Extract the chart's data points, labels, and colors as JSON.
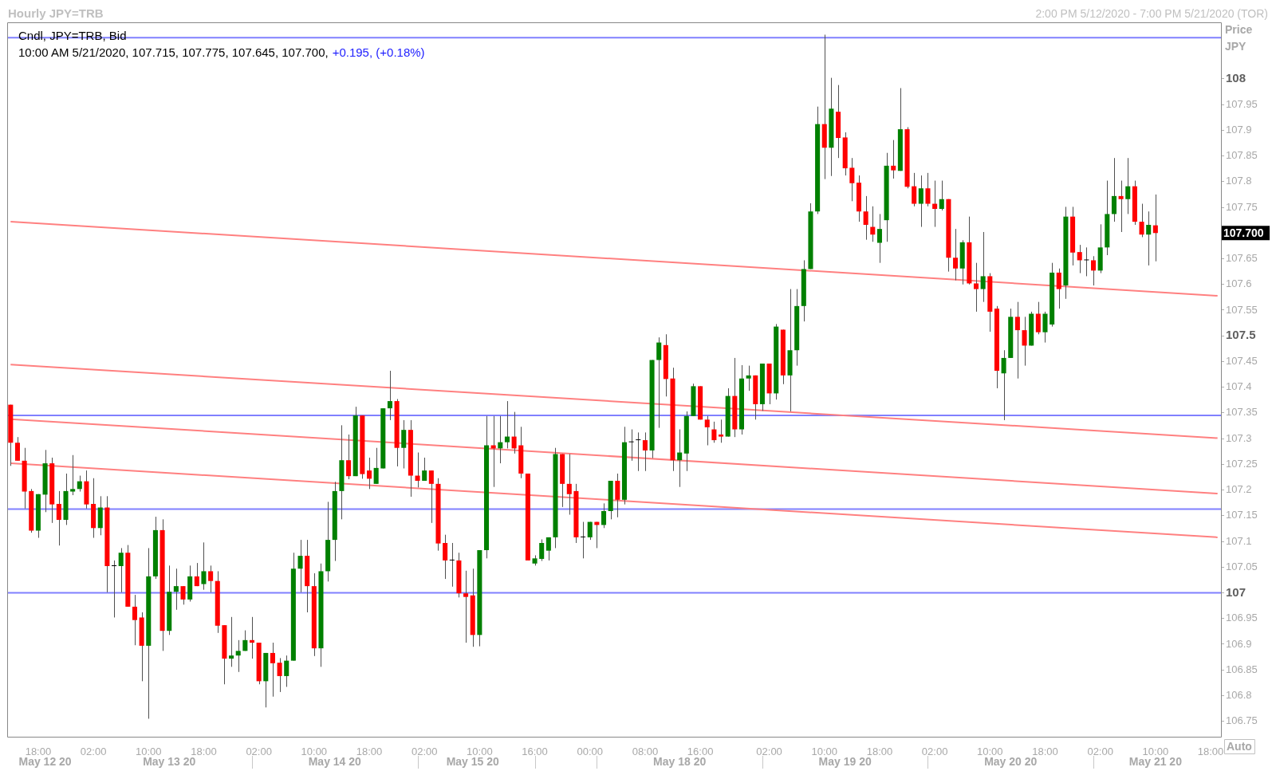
{
  "chart_data": {
    "type": "candlestick",
    "title": "Hourly JPY=TRB",
    "subtitle": "2:00 PM 5/12/2020 - 7:00 PM 5/21/2020 (TOR)",
    "ylabel": "Price JPY",
    "annotations": [
      "Cndl, JPY=TRB, Bid",
      "10:00 AM 5/21/2020, 107.715, 107.775, 107.645, 107.700,",
      "+0.195, (+0.18%)",
      "Auto",
      "May 12 20",
      "May 13 20",
      "May 14 20",
      "May 15 20",
      "May 18 20",
      "May 19 20",
      "May 20 20",
      "May 21 20"
    ],
    "categories": [
      null,
      null,
      null,
      null,
      "18:00",
      null,
      null,
      null,
      null,
      null,
      null,
      null,
      "02:00",
      null,
      null,
      null,
      null,
      null,
      null,
      null,
      "10:00",
      null,
      null,
      null,
      null,
      null,
      null,
      null,
      "18:00",
      null,
      null,
      null,
      null,
      null,
      null,
      null,
      "02:00",
      null,
      null,
      null,
      null,
      null,
      null,
      null,
      "10:00",
      null,
      null,
      null,
      null,
      null,
      null,
      null,
      "18:00",
      null,
      null,
      null,
      null,
      null,
      null,
      null,
      "02:00",
      null,
      null,
      null,
      null,
      null,
      null,
      null,
      "10:00",
      null,
      null,
      null,
      null,
      null,
      null,
      null,
      "16:00",
      null,
      null,
      null,
      null,
      null,
      null,
      null,
      "00:00",
      null,
      null,
      null,
      null,
      null,
      null,
      null,
      "08:00",
      null,
      null,
      null,
      null,
      null,
      null,
      null,
      "16:00",
      null,
      null,
      null,
      null,
      null,
      null,
      null,
      null,
      null,
      "02:00",
      null,
      null,
      null,
      null,
      null,
      null,
      null,
      "10:00",
      null,
      null,
      null,
      null,
      null,
      null,
      null,
      "18:00",
      null,
      null,
      null,
      null,
      null,
      null,
      null,
      "02:00",
      null,
      null,
      null,
      null,
      null,
      null,
      null,
      "10:00",
      null,
      null,
      null,
      null,
      null,
      null,
      null,
      "18:00",
      null,
      null,
      null,
      null,
      null,
      null,
      null,
      "02:00",
      null,
      null,
      null,
      null,
      null,
      null,
      null,
      "10:00",
      null,
      null,
      null,
      null,
      null,
      null,
      null,
      "18:00",
      null
    ],
    "ohlc": [
      [
        107.366,
        107.366,
        107.247,
        107.292
      ],
      [
        107.292,
        107.303,
        107.257,
        107.257
      ],
      [
        107.257,
        107.282,
        107.164,
        107.197
      ],
      [
        107.198,
        107.202,
        107.117,
        107.121
      ],
      [
        107.121,
        107.192,
        107.107,
        107.192
      ],
      [
        107.191,
        107.278,
        107.157,
        107.252
      ],
      [
        107.252,
        107.263,
        107.136,
        107.172
      ],
      [
        107.173,
        107.198,
        107.092,
        107.142
      ],
      [
        107.142,
        107.232,
        107.132,
        107.198
      ],
      [
        107.197,
        107.268,
        107.19,
        107.202
      ],
      [
        107.202,
        107.228,
        107.197,
        107.217
      ],
      [
        107.217,
        107.238,
        107.164,
        107.172
      ],
      [
        107.173,
        107.223,
        107.107,
        107.126
      ],
      [
        107.126,
        107.188,
        107.112,
        107.166
      ],
      [
        107.166,
        107.188,
        107.001,
        107.052
      ],
      [
        107.052,
        107.063,
        106.952,
        107.052
      ],
      [
        107.052,
        107.087,
        107.001,
        107.078
      ],
      [
        107.078,
        107.093,
        106.973,
        106.973
      ],
      [
        106.973,
        106.996,
        106.898,
        106.947
      ],
      [
        106.952,
        106.962,
        106.828,
        106.897
      ],
      [
        106.897,
        107.087,
        106.755,
        107.032
      ],
      [
        107.032,
        107.148,
        107.027,
        107.122
      ],
      [
        107.122,
        107.143,
        106.887,
        106.926
      ],
      [
        106.926,
        107.053,
        106.918,
        107.002
      ],
      [
        107.002,
        107.047,
        106.967,
        107.013
      ],
      [
        107.013,
        107.013,
        106.977,
        106.987
      ],
      [
        106.987,
        107.053,
        106.983,
        107.032
      ],
      [
        107.032,
        107.058,
        107.013,
        107.013
      ],
      [
        107.017,
        107.098,
        107.006,
        107.042
      ],
      [
        107.042,
        107.053,
        107.001,
        107.023
      ],
      [
        107.023,
        107.042,
        106.922,
        106.936
      ],
      [
        106.937,
        106.937,
        106.822,
        106.872
      ],
      [
        106.872,
        106.953,
        106.856,
        106.878
      ],
      [
        106.878,
        106.908,
        106.846,
        106.887
      ],
      [
        106.887,
        106.927,
        106.887,
        106.908
      ],
      [
        106.908,
        106.953,
        106.872,
        106.903
      ],
      [
        106.903,
        106.903,
        106.822,
        106.828
      ],
      [
        106.828,
        106.883,
        106.777,
        106.883
      ],
      [
        106.883,
        106.903,
        106.798,
        106.863
      ],
      [
        106.864,
        106.873,
        106.807,
        106.838
      ],
      [
        106.838,
        106.878,
        106.817,
        106.868
      ],
      [
        106.868,
        107.078,
        106.868,
        107.047
      ],
      [
        107.047,
        107.103,
        107.001,
        107.072
      ],
      [
        107.072,
        107.103,
        106.962,
        107.013
      ],
      [
        107.013,
        107.038,
        106.877,
        106.892
      ],
      [
        106.892,
        107.057,
        106.856,
        107.042
      ],
      [
        107.042,
        107.177,
        107.022,
        107.103
      ],
      [
        107.103,
        107.216,
        107.062,
        107.198
      ],
      [
        107.198,
        107.326,
        107.143,
        107.258
      ],
      [
        107.258,
        107.308,
        107.221,
        107.227
      ],
      [
        107.227,
        107.362,
        107.227,
        107.345
      ],
      [
        107.345,
        107.345,
        107.222,
        107.231
      ],
      [
        107.238,
        107.263,
        107.202,
        107.222
      ],
      [
        107.212,
        107.282,
        107.212,
        107.243
      ],
      [
        107.242,
        107.359,
        107.242,
        107.359
      ],
      [
        107.359,
        107.432,
        107.336,
        107.373
      ],
      [
        107.373,
        107.377,
        107.246,
        107.282
      ],
      [
        107.282,
        107.336,
        107.242,
        107.317
      ],
      [
        107.317,
        107.336,
        107.187,
        107.228
      ],
      [
        107.228,
        107.273,
        107.205,
        107.218
      ],
      [
        107.218,
        107.263,
        107.218,
        107.238
      ],
      [
        107.238,
        107.238,
        107.136,
        107.212
      ],
      [
        107.212,
        107.223,
        107.082,
        107.096
      ],
      [
        107.097,
        107.113,
        107.027,
        107.063
      ],
      [
        107.063,
        107.097,
        107.012,
        107.063
      ],
      [
        107.063,
        107.078,
        106.991,
        106.999
      ],
      [
        106.999,
        107.043,
        106.903,
        106.992
      ],
      [
        106.995,
        107.047,
        106.895,
        106.918
      ],
      [
        106.918,
        107.083,
        106.896,
        107.083
      ],
      [
        107.083,
        107.344,
        107.067,
        107.287
      ],
      [
        107.287,
        107.344,
        107.206,
        107.281
      ],
      [
        107.281,
        107.344,
        107.252,
        107.293
      ],
      [
        107.293,
        107.373,
        107.281,
        107.304
      ],
      [
        107.304,
        107.352,
        107.271,
        107.281
      ],
      [
        107.287,
        107.323,
        107.223,
        107.232
      ],
      [
        107.232,
        107.232,
        107.063,
        107.063
      ],
      [
        107.057,
        107.073,
        107.053,
        107.067
      ],
      [
        107.066,
        107.104,
        107.062,
        107.097
      ],
      [
        107.082,
        107.108,
        107.063,
        107.108
      ],
      [
        107.108,
        107.282,
        107.087,
        107.27
      ],
      [
        107.27,
        107.27,
        107.167,
        107.212
      ],
      [
        107.212,
        107.27,
        107.152,
        107.192
      ],
      [
        107.198,
        107.212,
        107.097,
        107.108
      ],
      [
        107.108,
        107.138,
        107.067,
        107.108
      ],
      [
        107.108,
        107.138,
        107.103,
        107.138
      ],
      [
        107.138,
        107.138,
        107.087,
        107.132
      ],
      [
        107.132,
        107.174,
        107.126,
        107.159
      ],
      [
        107.159,
        107.218,
        107.143,
        107.218
      ],
      [
        107.218,
        107.232,
        107.147,
        107.181
      ],
      [
        107.181,
        107.323,
        107.172,
        107.293
      ],
      [
        107.293,
        107.318,
        107.257,
        107.293
      ],
      [
        107.297,
        107.312,
        107.237,
        107.297
      ],
      [
        107.297,
        107.312,
        107.237,
        107.277
      ],
      [
        107.277,
        107.453,
        107.262,
        107.453
      ],
      [
        107.453,
        107.497,
        107.321,
        107.487
      ],
      [
        107.482,
        107.503,
        107.382,
        107.416
      ],
      [
        107.417,
        107.438,
        107.237,
        107.258
      ],
      [
        107.258,
        107.318,
        107.206,
        107.273
      ],
      [
        107.271,
        107.353,
        107.237,
        107.344
      ],
      [
        107.344,
        107.407,
        107.344,
        107.402
      ],
      [
        107.402,
        107.402,
        107.337,
        107.337
      ],
      [
        107.337,
        107.344,
        107.287,
        107.322
      ],
      [
        107.318,
        107.333,
        107.292,
        107.297
      ],
      [
        107.308,
        107.337,
        107.292,
        107.304
      ],
      [
        107.304,
        107.398,
        107.304,
        107.383
      ],
      [
        107.383,
        107.457,
        107.303,
        107.318
      ],
      [
        107.318,
        107.443,
        107.308,
        107.417
      ],
      [
        107.417,
        107.442,
        107.393,
        107.423
      ],
      [
        107.423,
        107.423,
        107.337,
        107.367
      ],
      [
        107.367,
        107.446,
        107.354,
        107.446
      ],
      [
        107.446,
        107.446,
        107.367,
        107.388
      ],
      [
        107.388,
        107.523,
        107.376,
        107.518
      ],
      [
        107.512,
        107.512,
        107.406,
        107.423
      ],
      [
        107.423,
        107.591,
        107.353,
        107.472
      ],
      [
        107.472,
        107.591,
        107.442,
        107.558
      ],
      [
        107.558,
        107.647,
        107.528,
        107.63
      ],
      [
        107.63,
        107.758,
        107.63,
        107.742
      ],
      [
        107.742,
        107.946,
        107.737,
        107.912
      ],
      [
        107.912,
        108.086,
        107.805,
        107.866
      ],
      [
        107.866,
        108.002,
        107.811,
        107.942
      ],
      [
        107.936,
        107.988,
        107.846,
        107.885
      ],
      [
        107.886,
        107.896,
        107.812,
        107.826
      ],
      [
        107.827,
        107.846,
        107.762,
        107.797
      ],
      [
        107.798,
        107.812,
        107.722,
        107.742
      ],
      [
        107.742,
        107.772,
        107.687,
        107.716
      ],
      [
        107.712,
        107.752,
        107.683,
        107.697
      ],
      [
        107.681,
        107.737,
        107.642,
        107.708
      ],
      [
        107.725,
        107.856,
        107.683,
        107.831
      ],
      [
        107.831,
        107.881,
        107.806,
        107.822
      ],
      [
        107.821,
        107.982,
        107.821,
        107.902
      ],
      [
        107.902,
        107.906,
        107.787,
        107.79
      ],
      [
        107.791,
        107.817,
        107.752,
        107.757
      ],
      [
        107.757,
        107.812,
        107.712,
        107.787
      ],
      [
        107.787,
        107.817,
        107.752,
        107.757
      ],
      [
        107.757,
        107.802,
        107.712,
        107.747
      ],
      [
        107.747,
        107.802,
        107.744,
        107.766
      ],
      [
        107.766,
        107.766,
        107.625,
        107.652
      ],
      [
        107.652,
        107.708,
        107.608,
        107.631
      ],
      [
        107.631,
        107.686,
        107.6,
        107.682
      ],
      [
        107.682,
        107.732,
        107.6,
        107.602
      ],
      [
        107.602,
        107.642,
        107.547,
        107.591
      ],
      [
        107.591,
        107.702,
        107.566,
        107.616
      ],
      [
        107.616,
        107.622,
        107.508,
        107.547
      ],
      [
        107.553,
        107.558,
        107.398,
        107.432
      ],
      [
        107.427,
        107.472,
        107.336,
        107.457
      ],
      [
        107.457,
        107.553,
        107.457,
        107.537
      ],
      [
        107.537,
        107.566,
        107.417,
        107.511
      ],
      [
        107.511,
        107.537,
        107.442,
        107.481
      ],
      [
        107.481,
        107.547,
        107.481,
        107.543
      ],
      [
        107.543,
        107.566,
        107.503,
        107.507
      ],
      [
        107.507,
        107.547,
        107.487,
        107.543
      ],
      [
        107.522,
        107.642,
        107.518,
        107.623
      ],
      [
        107.623,
        107.631,
        107.553,
        107.591
      ],
      [
        107.598,
        107.751,
        107.572,
        107.732
      ],
      [
        107.732,
        107.751,
        107.637,
        107.662
      ],
      [
        107.663,
        107.677,
        107.622,
        107.647
      ],
      [
        107.647,
        107.672,
        107.616,
        107.647
      ],
      [
        107.647,
        107.655,
        107.598,
        107.627
      ],
      [
        107.627,
        107.717,
        107.622,
        107.672
      ],
      [
        107.672,
        107.802,
        107.657,
        107.737
      ],
      [
        107.737,
        107.846,
        107.722,
        107.772
      ],
      [
        107.772,
        107.802,
        107.702,
        107.766
      ],
      [
        107.766,
        107.846,
        107.737,
        107.791
      ],
      [
        107.791,
        107.802,
        107.716,
        107.722
      ],
      [
        107.722,
        107.757,
        107.692,
        107.697
      ],
      [
        107.697,
        107.742,
        107.637,
        107.716
      ],
      [
        107.715,
        107.775,
        107.645,
        107.7
      ],
      null,
      null,
      null,
      null,
      null,
      null,
      null,
      null,
      null
    ],
    "colors": [
      "#ff0000",
      "#ff0000",
      "#ff0000",
      "#ff0000",
      "#008000",
      "#008000",
      "#ff0000",
      "#ff0000",
      "#008000",
      "#008000",
      "#008000",
      "#ff0000",
      "#ff0000",
      "#008000",
      "#ff0000",
      "#000000",
      "#008000",
      "#ff0000",
      "#ff0000",
      "#ff0000",
      "#008000",
      "#008000",
      "#ff0000",
      "#008000",
      "#008000",
      "#ff0000",
      "#008000",
      "#ff0000",
      "#008000",
      "#ff0000",
      "#ff0000",
      "#ff0000",
      "#008000",
      "#008000",
      "#008000",
      "#ff0000",
      "#ff0000",
      "#008000",
      "#ff0000",
      "#ff0000",
      "#008000",
      "#008000",
      "#008000",
      "#ff0000",
      "#ff0000",
      "#008000",
      "#008000",
      "#008000",
      "#008000",
      "#ff0000",
      "#008000",
      "#ff0000",
      "#ff0000",
      "#008000",
      "#008000",
      "#008000",
      "#ff0000",
      "#008000",
      "#ff0000",
      "#ff0000",
      "#008000",
      "#ff0000",
      "#ff0000",
      "#ff0000",
      "#000000",
      "#ff0000",
      "#ff0000",
      "#ff0000",
      "#008000",
      "#008000",
      "#ff0000",
      "#008000",
      "#008000",
      "#ff0000",
      "#ff0000",
      "#ff0000",
      "#008000",
      "#008000",
      "#008000",
      "#008000",
      "#ff0000",
      "#ff0000",
      "#ff0000",
      "#000000",
      "#008000",
      "#ff0000",
      "#008000",
      "#008000",
      "#ff0000",
      "#008000",
      "#000000",
      "#000000",
      "#ff0000",
      "#008000",
      "#008000",
      "#ff0000",
      "#ff0000",
      "#008000",
      "#008000",
      "#008000",
      "#ff0000",
      "#ff0000",
      "#ff0000",
      "#ff0000",
      "#008000",
      "#ff0000",
      "#008000",
      "#008000",
      "#ff0000",
      "#008000",
      "#ff0000",
      "#008000",
      "#ff0000",
      "#008000",
      "#008000",
      "#008000",
      "#008000",
      "#008000",
      "#ff0000",
      "#008000",
      "#ff0000",
      "#ff0000",
      "#ff0000",
      "#ff0000",
      "#ff0000",
      "#ff0000",
      "#008000",
      "#008000",
      "#ff0000",
      "#008000",
      "#ff0000",
      "#ff0000",
      "#008000",
      "#ff0000",
      "#ff0000",
      "#008000",
      "#ff0000",
      "#ff0000",
      "#008000",
      "#ff0000",
      "#ff0000",
      "#008000",
      "#ff0000",
      "#ff0000",
      "#008000",
      "#008000",
      "#ff0000",
      "#ff0000",
      "#008000",
      "#ff0000",
      "#008000",
      "#008000",
      "#ff0000",
      "#008000",
      "#ff0000",
      "#ff0000",
      "#000000",
      "#ff0000",
      "#008000",
      "#008000",
      "#008000",
      "#ff0000",
      "#008000",
      "#ff0000",
      "#ff0000",
      "#008000",
      "#ff0000",
      null,
      null,
      null,
      null,
      null,
      null,
      null,
      null,
      null
    ],
    "series": [
      {
        "type": "line",
        "color": "#ff8080",
        "values": [
          107.722,
          null,
          null,
          null,
          null,
          null,
          null,
          null,
          null,
          null,
          null,
          null,
          null,
          null,
          null,
          null,
          null,
          null,
          null,
          null,
          null,
          null,
          null,
          null,
          null,
          null,
          null,
          null,
          null,
          null,
          null,
          null,
          null,
          null,
          null,
          null,
          null,
          null,
          null,
          null,
          null,
          null,
          null,
          null,
          null,
          null,
          null,
          null,
          null,
          null,
          null,
          null,
          null,
          null,
          null,
          null,
          null,
          null,
          null,
          null,
          null,
          null,
          null,
          null,
          null,
          null,
          null,
          null,
          null,
          null,
          null,
          null,
          null,
          null,
          null,
          null,
          null,
          null,
          null,
          null,
          null,
          null,
          null,
          null,
          null,
          null,
          null,
          null,
          null,
          null,
          null,
          null,
          null,
          null,
          null,
          null,
          null,
          null,
          null,
          null,
          null,
          null,
          null,
          null,
          null,
          null,
          null,
          null,
          null,
          null,
          null,
          null,
          null,
          null,
          null,
          null,
          null,
          null,
          null,
          null,
          null,
          null,
          null,
          null,
          null,
          null,
          null,
          null,
          null,
          null,
          null,
          null,
          null,
          null,
          null,
          null,
          null,
          null,
          null,
          null,
          null,
          null,
          null,
          null,
          null,
          null,
          null,
          null,
          null,
          null,
          null,
          null,
          null,
          null,
          null,
          null,
          null,
          null,
          null,
          null,
          null,
          null,
          null,
          null,
          null,
          null,
          null,
          null,
          null,
          null,
          null,
          null,
          null,
          null,
          null,
          107.578
        ]
      },
      {
        "type": "line",
        "color": "#ff8080",
        "values": [
          107.444,
          null,
          null,
          null,
          null,
          null,
          null,
          null,
          null,
          null,
          null,
          null,
          null,
          null,
          null,
          null,
          null,
          null,
          null,
          null,
          null,
          null,
          null,
          null,
          null,
          null,
          null,
          null,
          null,
          null,
          null,
          null,
          null,
          null,
          null,
          null,
          null,
          null,
          null,
          null,
          null,
          null,
          null,
          null,
          null,
          null,
          null,
          null,
          null,
          null,
          null,
          null,
          null,
          null,
          null,
          null,
          null,
          null,
          null,
          null,
          null,
          null,
          null,
          null,
          null,
          null,
          null,
          null,
          null,
          null,
          null,
          null,
          null,
          null,
          null,
          null,
          null,
          null,
          null,
          null,
          null,
          null,
          null,
          null,
          null,
          null,
          null,
          null,
          null,
          null,
          null,
          null,
          null,
          null,
          null,
          null,
          null,
          null,
          null,
          null,
          null,
          null,
          null,
          null,
          null,
          null,
          null,
          null,
          null,
          null,
          null,
          null,
          null,
          null,
          null,
          null,
          null,
          null,
          null,
          null,
          null,
          null,
          null,
          null,
          null,
          null,
          null,
          null,
          null,
          null,
          null,
          null,
          null,
          null,
          null,
          null,
          null,
          null,
          null,
          null,
          null,
          null,
          null,
          null,
          null,
          null,
          null,
          null,
          null,
          null,
          null,
          null,
          null,
          null,
          null,
          null,
          null,
          null,
          null,
          null,
          null,
          null,
          null,
          null,
          null,
          null,
          null,
          null,
          null,
          null,
          null,
          null,
          null,
          null,
          null,
          107.301
        ]
      },
      {
        "type": "line",
        "color": "#ff8080",
        "values": [
          107.338,
          null,
          null,
          null,
          null,
          null,
          null,
          null,
          null,
          null,
          null,
          null,
          null,
          null,
          null,
          null,
          null,
          null,
          null,
          null,
          null,
          null,
          null,
          null,
          null,
          null,
          null,
          null,
          null,
          null,
          null,
          null,
          null,
          null,
          null,
          null,
          null,
          null,
          null,
          null,
          null,
          null,
          null,
          null,
          null,
          null,
          null,
          null,
          null,
          null,
          null,
          null,
          null,
          null,
          null,
          null,
          null,
          null,
          null,
          null,
          null,
          null,
          null,
          null,
          null,
          null,
          null,
          null,
          null,
          null,
          null,
          null,
          null,
          null,
          null,
          null,
          null,
          null,
          null,
          null,
          null,
          null,
          null,
          null,
          null,
          null,
          null,
          null,
          null,
          null,
          null,
          null,
          null,
          null,
          null,
          null,
          null,
          null,
          null,
          null,
          null,
          null,
          null,
          null,
          null,
          null,
          null,
          null,
          null,
          null,
          null,
          null,
          null,
          null,
          null,
          null,
          null,
          null,
          null,
          null,
          null,
          null,
          null,
          null,
          null,
          null,
          null,
          null,
          null,
          null,
          null,
          null,
          null,
          null,
          null,
          null,
          null,
          null,
          null,
          null,
          null,
          null,
          null,
          null,
          null,
          null,
          null,
          null,
          null,
          null,
          null,
          null,
          null,
          null,
          null,
          null,
          null,
          null,
          null,
          null,
          null,
          null,
          null,
          null,
          null,
          null,
          null,
          null,
          null,
          null,
          null,
          null,
          null,
          null,
          null,
          107.193
        ]
      },
      {
        "type": "line",
        "color": "#ff8080",
        "values": [
          107.252,
          null,
          null,
          null,
          null,
          null,
          null,
          null,
          null,
          null,
          null,
          null,
          null,
          null,
          null,
          null,
          null,
          null,
          null,
          null,
          null,
          null,
          null,
          null,
          null,
          null,
          null,
          null,
          null,
          null,
          null,
          null,
          null,
          null,
          null,
          null,
          null,
          null,
          null,
          null,
          null,
          null,
          null,
          null,
          null,
          null,
          null,
          null,
          null,
          null,
          null,
          null,
          null,
          null,
          null,
          null,
          null,
          null,
          null,
          null,
          null,
          null,
          null,
          null,
          null,
          null,
          null,
          null,
          null,
          null,
          null,
          null,
          null,
          null,
          null,
          null,
          null,
          null,
          null,
          null,
          null,
          null,
          null,
          null,
          null,
          null,
          null,
          null,
          null,
          null,
          null,
          null,
          null,
          null,
          null,
          null,
          null,
          null,
          null,
          null,
          null,
          null,
          null,
          null,
          null,
          null,
          null,
          null,
          null,
          null,
          null,
          null,
          null,
          null,
          null,
          null,
          null,
          null,
          null,
          null,
          null,
          null,
          null,
          null,
          null,
          null,
          null,
          null,
          null,
          null,
          null,
          null,
          null,
          null,
          null,
          null,
          null,
          null,
          null,
          null,
          null,
          null,
          null,
          null,
          null,
          null,
          null,
          null,
          null,
          null,
          null,
          null,
          null,
          null,
          null,
          null,
          null,
          null,
          null,
          null,
          null,
          null,
          null,
          null,
          null,
          null,
          null,
          null,
          null,
          null,
          null,
          null,
          null,
          null,
          null,
          107.108
        ]
      }
    ],
    "ref_lines": [
      {
        "axis": "y",
        "value": 108.08,
        "color": "#8080ff"
      },
      {
        "axis": "y",
        "value": 107.345,
        "color": "#8080ff"
      },
      {
        "axis": "y",
        "value": 107.163,
        "color": "#8080ff"
      },
      {
        "axis": "y",
        "value": 107.0,
        "color": "#8080ff"
      }
    ],
    "ylim": [
      106.72,
      108.11
    ],
    "yticks": [
      106.75,
      106.8,
      106.85,
      106.9,
      106.95,
      107,
      107.05,
      107.1,
      107.15,
      107.2,
      107.25,
      107.3,
      107.35,
      107.4,
      107.45,
      107.5,
      107.55,
      107.6,
      107.65,
      {
        "value": 107.7,
        "label": "107.700"
      },
      107.75,
      107.8,
      107.85,
      107.9,
      107.95,
      108
    ]
  }
}
